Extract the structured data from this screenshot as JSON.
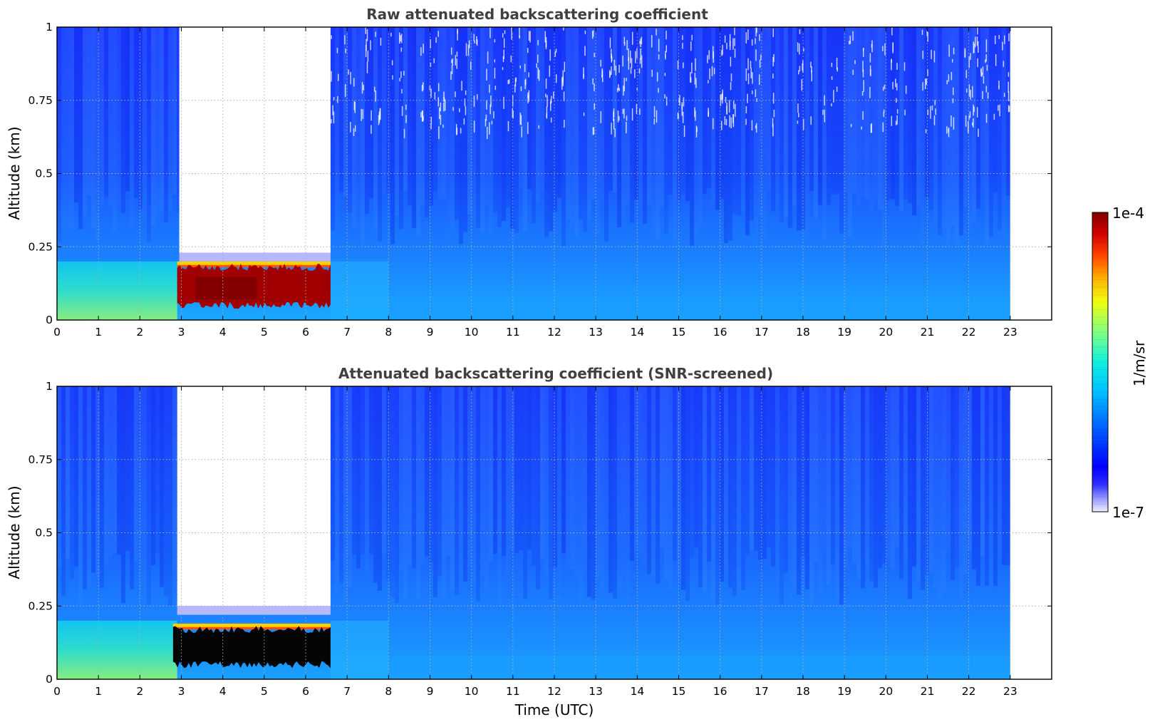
{
  "chart_data": [
    {
      "type": "heatmap",
      "title": "Raw attenuated backscattering coefficient",
      "xlabel": "",
      "ylabel": "Altitude (km)",
      "xlim": [
        0,
        24
      ],
      "ylim": [
        0,
        1
      ],
      "x_ticks": [
        "0",
        "1",
        "2",
        "3",
        "4",
        "5",
        "6",
        "7",
        "8",
        "9",
        "10",
        "11",
        "12",
        "13",
        "14",
        "15",
        "16",
        "17",
        "18",
        "19",
        "20",
        "21",
        "22",
        "23"
      ],
      "y_ticks": [
        "0",
        "0.25",
        "0.5",
        "0.75",
        "1"
      ],
      "data_x_range": [
        0,
        23
      ],
      "grid": true,
      "colormap": "jet",
      "features": [
        {
          "feature": "no-signal region",
          "x": [
            2.95,
            6.6
          ],
          "y": [
            0.2,
            1.0
          ]
        },
        {
          "feature": "high backscatter layer",
          "x": [
            2.9,
            6.6
          ],
          "y": [
            0.05,
            0.18
          ],
          "level": "9e-5"
        }
      ]
    },
    {
      "type": "heatmap",
      "title": "Attenuated backscattering coefficient (SNR-screened)",
      "xlabel": "Time (UTC)",
      "ylabel": "Altitude (km)",
      "xlim": [
        0,
        24
      ],
      "ylim": [
        0,
        1
      ],
      "x_ticks": [
        "0",
        "1",
        "2",
        "3",
        "4",
        "5",
        "6",
        "7",
        "8",
        "9",
        "10",
        "11",
        "12",
        "13",
        "14",
        "15",
        "16",
        "17",
        "18",
        "19",
        "20",
        "21",
        "22",
        "23"
      ],
      "y_ticks": [
        "0",
        "0.25",
        "0.5",
        "0.75",
        "1"
      ],
      "data_x_range": [
        0,
        23
      ],
      "grid": true,
      "colormap": "jet",
      "features": [
        {
          "feature": "no-signal region",
          "x": [
            2.9,
            6.6
          ],
          "y": [
            0.22,
            1.0
          ]
        },
        {
          "feature": "saturated layer (black)",
          "x": [
            2.8,
            6.6
          ],
          "y": [
            0.05,
            0.17
          ]
        }
      ]
    }
  ],
  "colorbar": {
    "label": "1/m/sr",
    "max_label": "1e-4",
    "min_label": "1e-7",
    "scale": "log",
    "range": [
      1e-07,
      0.0001
    ]
  }
}
